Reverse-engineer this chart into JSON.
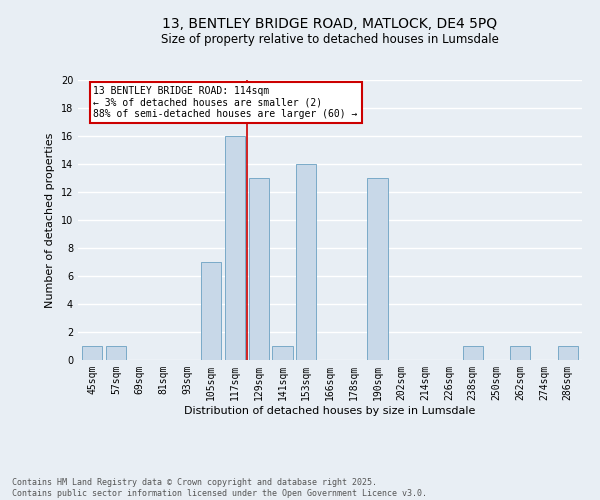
{
  "title_line1": "13, BENTLEY BRIDGE ROAD, MATLOCK, DE4 5PQ",
  "title_line2": "Size of property relative to detached houses in Lumsdale",
  "xlabel": "Distribution of detached houses by size in Lumsdale",
  "ylabel": "Number of detached properties",
  "bar_color": "#c8d8e8",
  "bar_edge_color": "#7aaac8",
  "categories": [
    "45sqm",
    "57sqm",
    "69sqm",
    "81sqm",
    "93sqm",
    "105sqm",
    "117sqm",
    "129sqm",
    "141sqm",
    "153sqm",
    "166sqm",
    "178sqm",
    "190sqm",
    "202sqm",
    "214sqm",
    "226sqm",
    "238sqm",
    "250sqm",
    "262sqm",
    "274sqm",
    "286sqm"
  ],
  "values": [
    1,
    1,
    0,
    0,
    0,
    7,
    16,
    13,
    1,
    14,
    0,
    0,
    13,
    0,
    0,
    0,
    1,
    0,
    1,
    0,
    1
  ],
  "ylim": [
    0,
    20
  ],
  "yticks": [
    0,
    2,
    4,
    6,
    8,
    10,
    12,
    14,
    16,
    18,
    20
  ],
  "vline_x": 6.5,
  "annotation_box_text": "13 BENTLEY BRIDGE ROAD: 114sqm\n← 3% of detached houses are smaller (2)\n88% of semi-detached houses are larger (60) →",
  "annotation_box_color": "#ffffff",
  "annotation_box_edge_color": "#cc0000",
  "vline_color": "#cc0000",
  "footer_line1": "Contains HM Land Registry data © Crown copyright and database right 2025.",
  "footer_line2": "Contains public sector information licensed under the Open Government Licence v3.0.",
  "background_color": "#e8eef4",
  "grid_color": "#ffffff"
}
